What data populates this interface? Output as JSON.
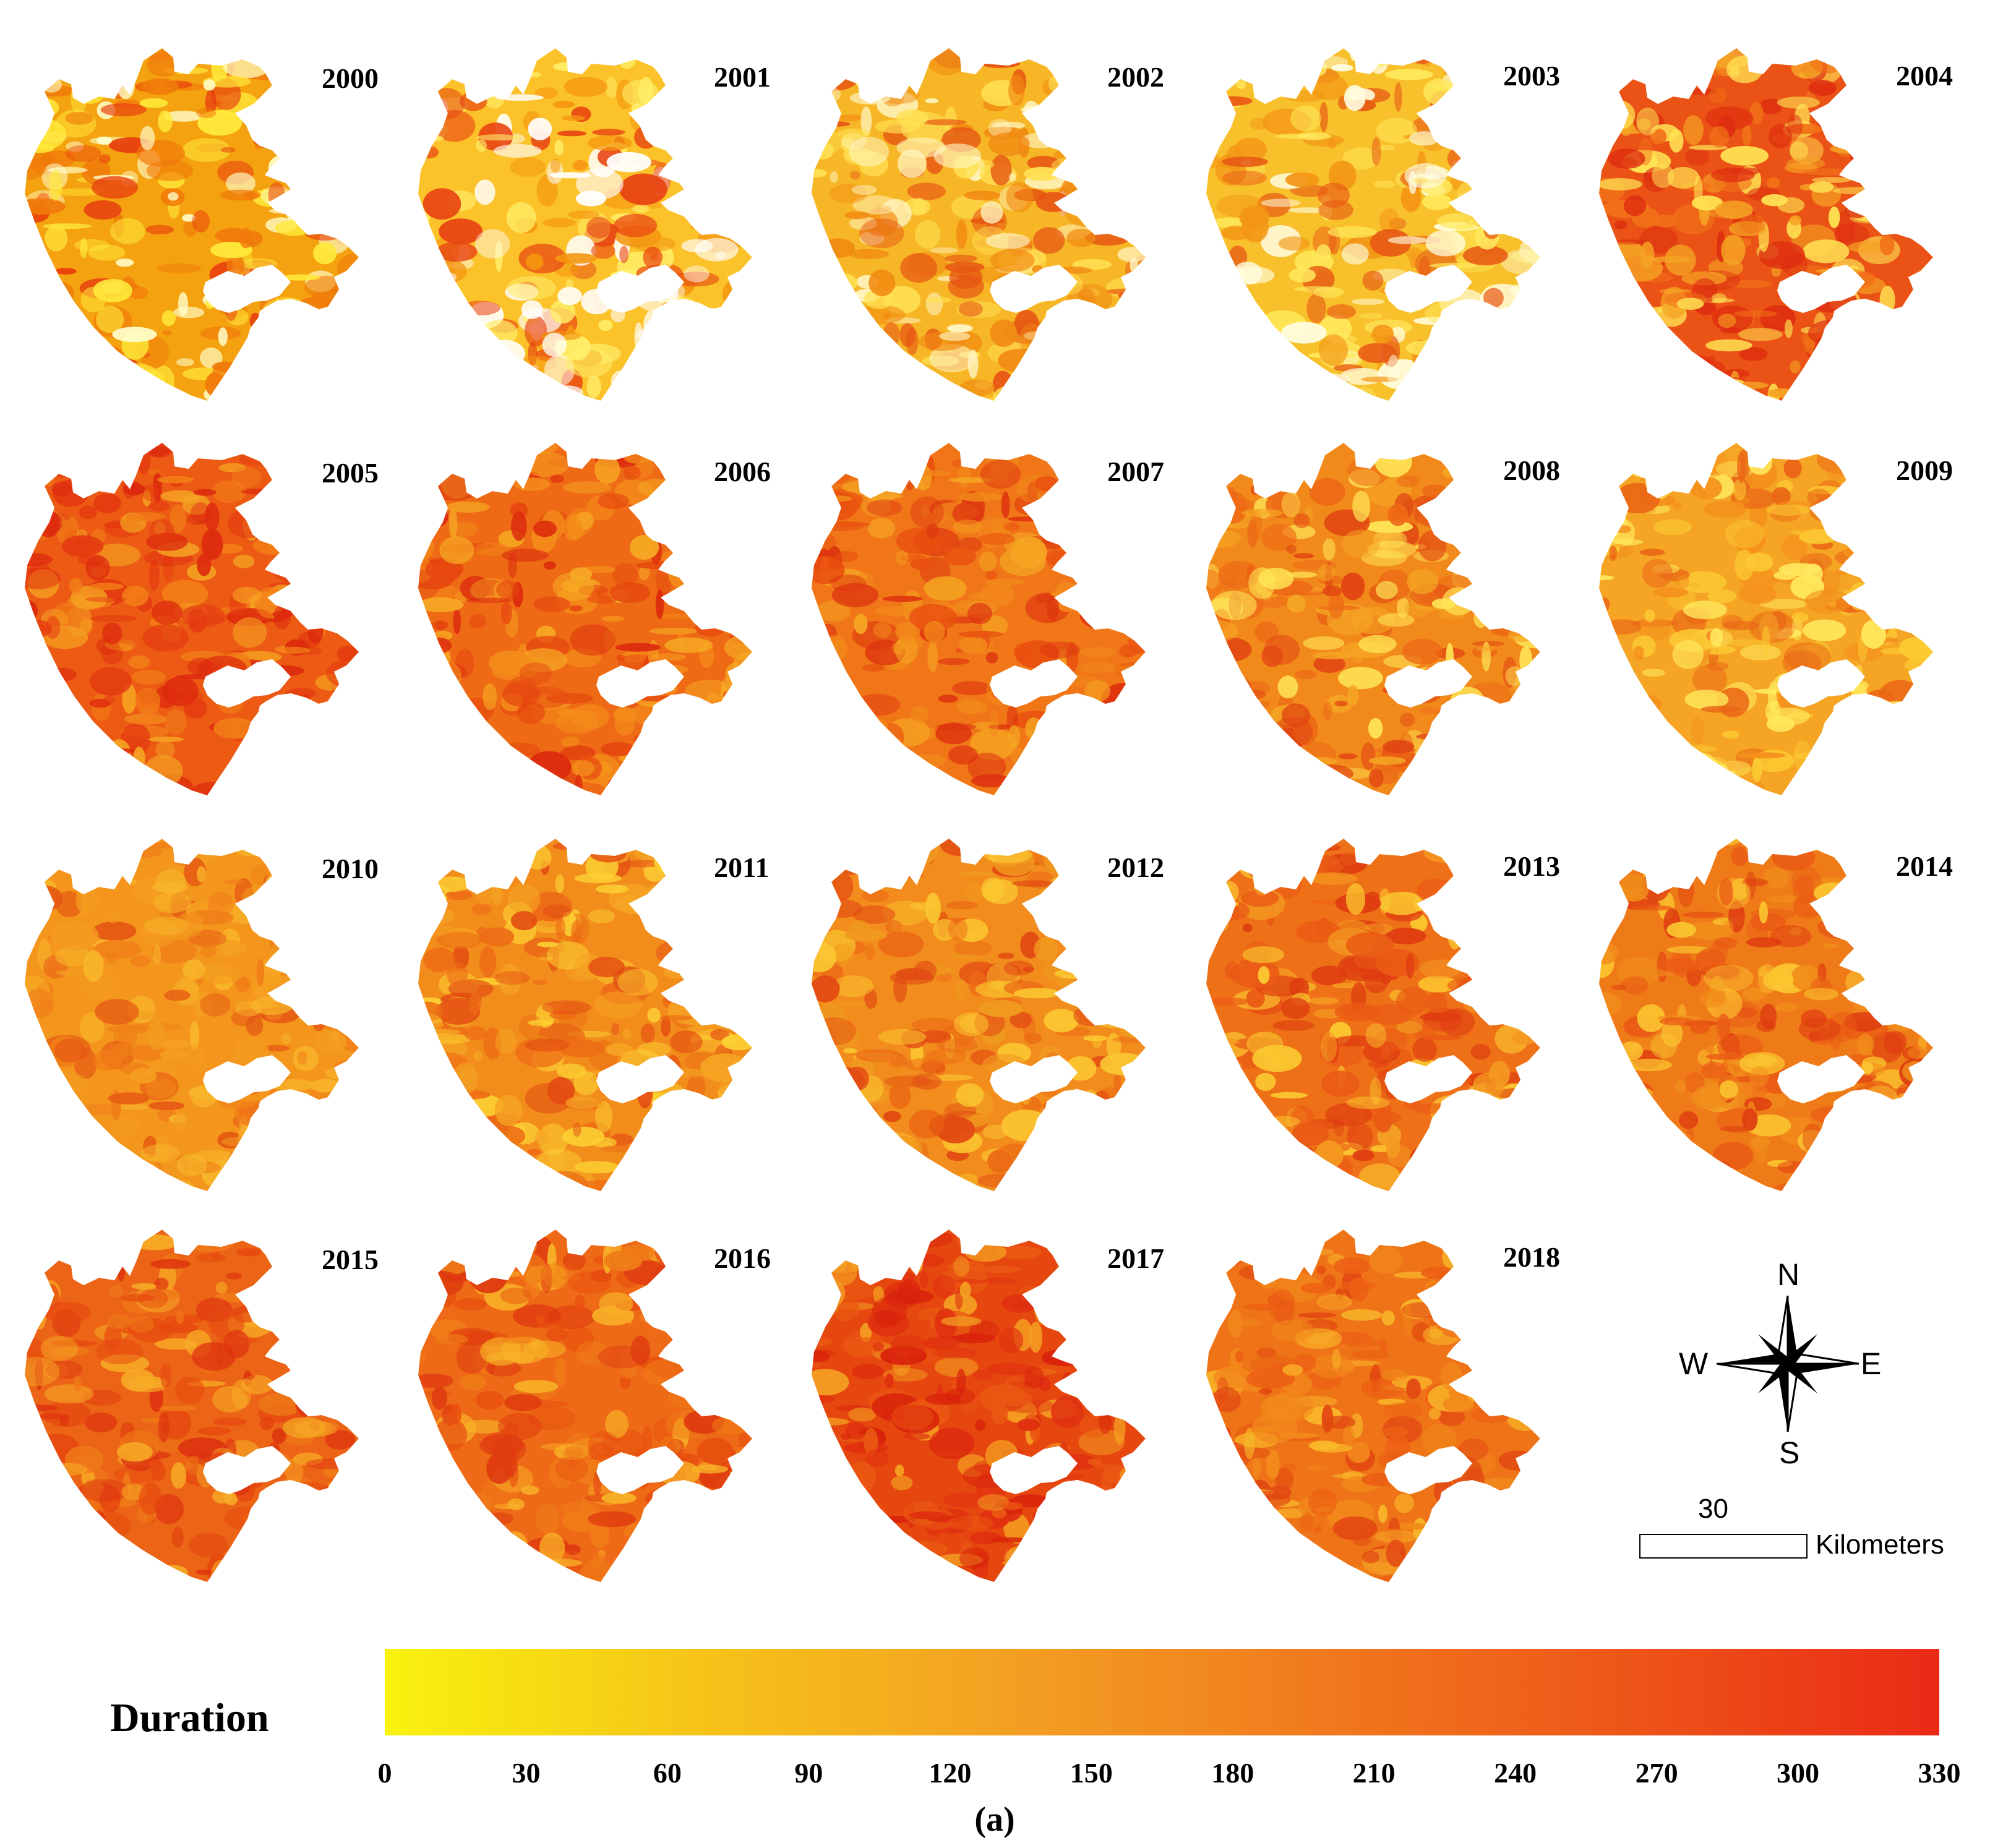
{
  "panels": [
    {
      "year": "2000",
      "palette": [
        "#f4a20f",
        "#f07a0a",
        "#ffe93a",
        "#ffffcc",
        "#e8400e"
      ]
    },
    {
      "year": "2001",
      "palette": [
        "#fbc22a",
        "#ffef6a",
        "#ffffff",
        "#f59611",
        "#e84512"
      ]
    },
    {
      "year": "2002",
      "palette": [
        "#f7b625",
        "#ffe154",
        "#fff7c5",
        "#f18b12",
        "#e65513"
      ]
    },
    {
      "year": "2003",
      "palette": [
        "#f8c02b",
        "#ffe95c",
        "#fffde0",
        "#f39515",
        "#e75a15"
      ]
    },
    {
      "year": "2004",
      "palette": [
        "#ea5315",
        "#f17218",
        "#f5a424",
        "#ffe353",
        "#de2d10"
      ]
    },
    {
      "year": "2005",
      "palette": [
        "#ec5a14",
        "#e43b10",
        "#f27d17",
        "#f5a322",
        "#dd2a0e"
      ]
    },
    {
      "year": "2006",
      "palette": [
        "#ee6a15",
        "#e6480f",
        "#f48c1a",
        "#f6a923",
        "#dc2c0e"
      ]
    },
    {
      "year": "2007",
      "palette": [
        "#f07618",
        "#f2891a",
        "#e9500f",
        "#f5a422",
        "#de340f"
      ]
    },
    {
      "year": "2008",
      "palette": [
        "#f28a1b",
        "#f5a624",
        "#ed6a16",
        "#ffe656",
        "#e14512"
      ]
    },
    {
      "year": "2009",
      "palette": [
        "#f5a423",
        "#f4901c",
        "#fccb33",
        "#ffe95e",
        "#ea6616"
      ]
    },
    {
      "year": "2010",
      "palette": [
        "#f4951c",
        "#f49e20",
        "#f07e18",
        "#f8b62a",
        "#e55813"
      ]
    },
    {
      "year": "2011",
      "palette": [
        "#f28c1b",
        "#f5a323",
        "#ed6c15",
        "#fcd033",
        "#e34c12"
      ]
    },
    {
      "year": "2012",
      "palette": [
        "#f28c1c",
        "#f09a1f",
        "#ec6b15",
        "#fbc831",
        "#e24a12"
      ]
    },
    {
      "year": "2013",
      "palette": [
        "#ee7118",
        "#ea5a14",
        "#f49a20",
        "#fbc830",
        "#df3d10"
      ]
    },
    {
      "year": "2014",
      "palette": [
        "#ef7a18",
        "#f18d1b",
        "#ea5a14",
        "#fbc530",
        "#df3c10"
      ]
    },
    {
      "year": "2015",
      "palette": [
        "#ec6415",
        "#ef7a18",
        "#e6480f",
        "#f7ab26",
        "#de3510"
      ]
    },
    {
      "year": "2016",
      "palette": [
        "#ee6a16",
        "#f07c18",
        "#e8500f",
        "#f8b228",
        "#df3a10"
      ]
    },
    {
      "year": "2017",
      "palette": [
        "#e6470f",
        "#ea5812",
        "#e03010",
        "#f49f22",
        "#d8220c"
      ]
    },
    {
      "year": "2018",
      "palette": [
        "#ef7417",
        "#f2891b",
        "#ec6014",
        "#f8b82a",
        "#e24812"
      ]
    }
  ],
  "compass": {
    "north": "N",
    "south": "S",
    "east": "E",
    "west": "W"
  },
  "scale": {
    "value": "30",
    "unit": "Kilometers"
  },
  "legend": {
    "title": "Duration",
    "ticks": [
      "0",
      "30",
      "60",
      "90",
      "120",
      "150",
      "180",
      "210",
      "240",
      "270",
      "300",
      "330"
    ],
    "min": 0,
    "max": 330,
    "colors": [
      "#f8f20e",
      "#f6c418",
      "#f3a022",
      "#f17a1e",
      "#ee5518",
      "#ea2a16"
    ]
  },
  "caption": "(a)"
}
